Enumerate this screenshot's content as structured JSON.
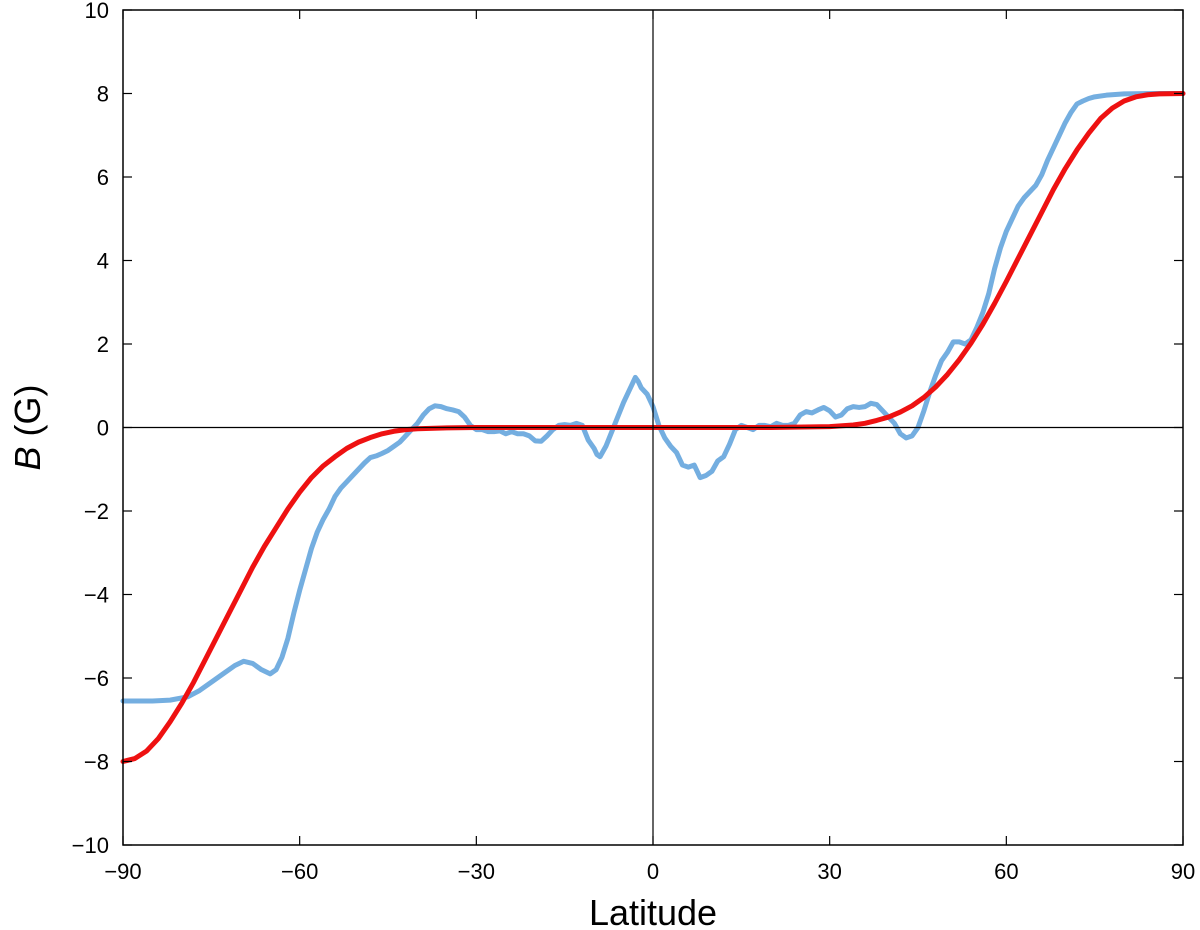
{
  "chart_data": {
    "type": "line",
    "title": "",
    "xlabel": "Latitude",
    "ylabel_var": "B",
    "ylabel_unit": " (G)",
    "xlim": [
      -90,
      90
    ],
    "ylim": [
      -10,
      10
    ],
    "grid": false,
    "legend": "none",
    "x_ticks": [
      -90,
      -60,
      -30,
      0,
      30,
      60,
      90
    ],
    "x_tick_labels": [
      "−90",
      "−60",
      "−30",
      "0",
      "30",
      "60",
      "90"
    ],
    "y_ticks": [
      -10,
      -8,
      -6,
      -4,
      -2,
      0,
      2,
      4,
      6,
      8,
      10
    ],
    "y_tick_labels": [
      "−10",
      "−8",
      "−6",
      "−4",
      "−2",
      "0",
      "2",
      "4",
      "6",
      "8",
      "10"
    ],
    "reference_lines": {
      "x": 0,
      "y": 0
    },
    "series": [
      {
        "color": "#74aee0",
        "points": [
          [
            -90,
            -6.55
          ],
          [
            -85,
            -6.55
          ],
          [
            -82,
            -6.53
          ],
          [
            -79,
            -6.45
          ],
          [
            -77,
            -6.3
          ],
          [
            -75,
            -6.1
          ],
          [
            -73,
            -5.9
          ],
          [
            -71,
            -5.7
          ],
          [
            -69.5,
            -5.6
          ],
          [
            -68,
            -5.65
          ],
          [
            -66.5,
            -5.8
          ],
          [
            -65,
            -5.9
          ],
          [
            -64,
            -5.8
          ],
          [
            -63,
            -5.5
          ],
          [
            -62,
            -5.05
          ],
          [
            -61,
            -4.45
          ],
          [
            -60,
            -3.9
          ],
          [
            -59,
            -3.4
          ],
          [
            -58,
            -2.9
          ],
          [
            -57,
            -2.5
          ],
          [
            -56,
            -2.2
          ],
          [
            -55,
            -1.95
          ],
          [
            -54,
            -1.65
          ],
          [
            -53,
            -1.45
          ],
          [
            -52,
            -1.3
          ],
          [
            -51,
            -1.15
          ],
          [
            -50,
            -1.0
          ],
          [
            -49,
            -0.85
          ],
          [
            -48,
            -0.72
          ],
          [
            -47,
            -0.68
          ],
          [
            -46,
            -0.62
          ],
          [
            -45,
            -0.55
          ],
          [
            -44,
            -0.45
          ],
          [
            -43,
            -0.35
          ],
          [
            -42,
            -0.2
          ],
          [
            -41,
            -0.05
          ],
          [
            -40,
            0.1
          ],
          [
            -39,
            0.3
          ],
          [
            -38,
            0.45
          ],
          [
            -37,
            0.52
          ],
          [
            -36,
            0.5
          ],
          [
            -35,
            0.45
          ],
          [
            -34,
            0.42
          ],
          [
            -33,
            0.38
          ],
          [
            -32,
            0.25
          ],
          [
            -31,
            0.05
          ],
          [
            -30,
            -0.05
          ],
          [
            -29,
            -0.05
          ],
          [
            -28,
            -0.1
          ],
          [
            -27,
            -0.1
          ],
          [
            -26,
            -0.08
          ],
          [
            -25,
            -0.15
          ],
          [
            -24,
            -0.1
          ],
          [
            -23,
            -0.15
          ],
          [
            -22,
            -0.15
          ],
          [
            -21,
            -0.2
          ],
          [
            -20,
            -0.32
          ],
          [
            -19,
            -0.33
          ],
          [
            -18,
            -0.2
          ],
          [
            -17,
            -0.05
          ],
          [
            -16,
            0.05
          ],
          [
            -15,
            0.07
          ],
          [
            -14,
            0.05
          ],
          [
            -13,
            0.1
          ],
          [
            -12,
            0.05
          ],
          [
            -11,
            -0.3
          ],
          [
            -10,
            -0.5
          ],
          [
            -9.5,
            -0.65
          ],
          [
            -9,
            -0.7
          ],
          [
            -8,
            -0.45
          ],
          [
            -7,
            -0.1
          ],
          [
            -6,
            0.25
          ],
          [
            -5,
            0.6
          ],
          [
            -4,
            0.9
          ],
          [
            -3.5,
            1.05
          ],
          [
            -3,
            1.2
          ],
          [
            -2.5,
            1.1
          ],
          [
            -2,
            0.95
          ],
          [
            -1,
            0.8
          ],
          [
            0,
            0.5
          ],
          [
            1,
            0.05
          ],
          [
            2,
            -0.25
          ],
          [
            3,
            -0.45
          ],
          [
            4,
            -0.6
          ],
          [
            5,
            -0.9
          ],
          [
            6,
            -0.95
          ],
          [
            7,
            -0.9
          ],
          [
            8,
            -1.2
          ],
          [
            9,
            -1.15
          ],
          [
            10,
            -1.05
          ],
          [
            11,
            -0.8
          ],
          [
            12,
            -0.7
          ],
          [
            13,
            -0.4
          ],
          [
            14,
            -0.05
          ],
          [
            15,
            0.05
          ],
          [
            16,
            0.0
          ],
          [
            17,
            -0.05
          ],
          [
            18,
            0.05
          ],
          [
            19,
            0.05
          ],
          [
            20,
            0.02
          ],
          [
            21,
            0.1
          ],
          [
            22,
            0.05
          ],
          [
            23,
            0.05
          ],
          [
            24,
            0.1
          ],
          [
            25,
            0.3
          ],
          [
            26,
            0.38
          ],
          [
            27,
            0.35
          ],
          [
            28,
            0.42
          ],
          [
            29,
            0.48
          ],
          [
            30,
            0.4
          ],
          [
            31,
            0.25
          ],
          [
            32,
            0.3
          ],
          [
            33,
            0.45
          ],
          [
            34,
            0.5
          ],
          [
            35,
            0.48
          ],
          [
            36,
            0.5
          ],
          [
            37,
            0.58
          ],
          [
            38,
            0.55
          ],
          [
            39,
            0.4
          ],
          [
            40,
            0.25
          ],
          [
            41,
            0.1
          ],
          [
            42,
            -0.15
          ],
          [
            43,
            -0.25
          ],
          [
            44,
            -0.2
          ],
          [
            45,
            0.0
          ],
          [
            46,
            0.4
          ],
          [
            47,
            0.85
          ],
          [
            48,
            1.25
          ],
          [
            49,
            1.6
          ],
          [
            50,
            1.8
          ],
          [
            51,
            2.05
          ],
          [
            52,
            2.05
          ],
          [
            53,
            2.0
          ],
          [
            54,
            2.1
          ],
          [
            55,
            2.4
          ],
          [
            56,
            2.75
          ],
          [
            57,
            3.2
          ],
          [
            58,
            3.8
          ],
          [
            59,
            4.3
          ],
          [
            60,
            4.7
          ],
          [
            61,
            5.0
          ],
          [
            62,
            5.3
          ],
          [
            63,
            5.5
          ],
          [
            64,
            5.65
          ],
          [
            65,
            5.8
          ],
          [
            66,
            6.05
          ],
          [
            67,
            6.4
          ],
          [
            68,
            6.7
          ],
          [
            69,
            7.0
          ],
          [
            70,
            7.3
          ],
          [
            71,
            7.55
          ],
          [
            72,
            7.75
          ],
          [
            73,
            7.82
          ],
          [
            74,
            7.88
          ],
          [
            75,
            7.92
          ],
          [
            77,
            7.96
          ],
          [
            80,
            7.99
          ],
          [
            85,
            8.0
          ],
          [
            90,
            8.0
          ]
        ]
      },
      {
        "color": "#ee1111",
        "points": [
          [
            -90,
            -8.0
          ],
          [
            -88,
            -7.93
          ],
          [
            -86,
            -7.75
          ],
          [
            -84,
            -7.45
          ],
          [
            -82,
            -7.05
          ],
          [
            -80,
            -6.6
          ],
          [
            -78,
            -6.1
          ],
          [
            -76,
            -5.55
          ],
          [
            -74,
            -5.0
          ],
          [
            -72,
            -4.45
          ],
          [
            -70,
            -3.9
          ],
          [
            -68,
            -3.35
          ],
          [
            -66,
            -2.85
          ],
          [
            -64,
            -2.4
          ],
          [
            -62,
            -1.95
          ],
          [
            -60,
            -1.55
          ],
          [
            -58,
            -1.2
          ],
          [
            -56,
            -0.92
          ],
          [
            -54,
            -0.7
          ],
          [
            -52,
            -0.5
          ],
          [
            -50,
            -0.35
          ],
          [
            -48,
            -0.24
          ],
          [
            -46,
            -0.15
          ],
          [
            -44,
            -0.09
          ],
          [
            -42,
            -0.05
          ],
          [
            -40,
            -0.03
          ],
          [
            -35,
            -0.01
          ],
          [
            -30,
            0.0
          ],
          [
            -20,
            0.0
          ],
          [
            -10,
            0.0
          ],
          [
            0,
            0.0
          ],
          [
            10,
            0.0
          ],
          [
            20,
            0.0
          ],
          [
            30,
            0.02
          ],
          [
            34,
            0.06
          ],
          [
            36,
            0.1
          ],
          [
            38,
            0.17
          ],
          [
            40,
            0.25
          ],
          [
            42,
            0.37
          ],
          [
            44,
            0.52
          ],
          [
            46,
            0.72
          ],
          [
            48,
            0.97
          ],
          [
            50,
            1.27
          ],
          [
            52,
            1.62
          ],
          [
            54,
            2.02
          ],
          [
            56,
            2.47
          ],
          [
            58,
            2.97
          ],
          [
            60,
            3.5
          ],
          [
            62,
            4.05
          ],
          [
            64,
            4.6
          ],
          [
            66,
            5.15
          ],
          [
            68,
            5.7
          ],
          [
            70,
            6.2
          ],
          [
            72,
            6.65
          ],
          [
            74,
            7.05
          ],
          [
            76,
            7.4
          ],
          [
            78,
            7.65
          ],
          [
            80,
            7.82
          ],
          [
            82,
            7.92
          ],
          [
            84,
            7.97
          ],
          [
            86,
            7.99
          ],
          [
            90,
            8.0
          ]
        ]
      }
    ]
  }
}
